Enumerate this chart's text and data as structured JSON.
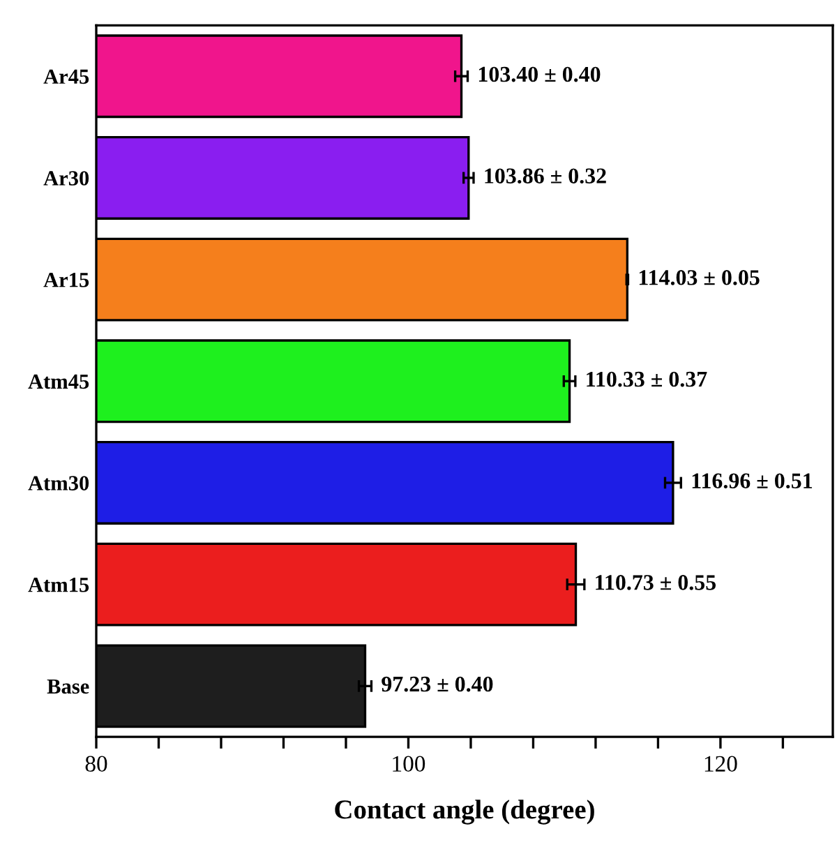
{
  "chart_data": {
    "type": "bar",
    "orientation": "horizontal",
    "xlabel": "Contact angle (degree)",
    "categories": [
      "Ar45",
      "Ar30",
      "Ar15",
      "Atm45",
      "Atm30",
      "Atm15",
      "Base"
    ],
    "values": [
      103.4,
      103.86,
      114.03,
      110.33,
      116.96,
      110.73,
      97.23
    ],
    "errors": [
      0.4,
      0.32,
      0.05,
      0.37,
      0.51,
      0.55,
      0.4
    ],
    "value_labels": [
      "103.40 ± 0.40",
      "103.86 ± 0.32",
      "114.03 ± 0.05",
      "110.33 ± 0.37",
      "116.96 ± 0.51",
      "110.73 ± 0.55",
      "97.23 ± 0.40"
    ],
    "colors": [
      "#f0158c",
      "#8a1ef0",
      "#f57f1c",
      "#1ef01e",
      "#1e1ee6",
      "#eb1e1e",
      "#1e1e1e"
    ],
    "xlim": [
      80,
      127.2
    ],
    "xticks": [
      80,
      {
        "value": 84,
        "label": null
      },
      {
        "value": 88,
        "label": null
      },
      {
        "value": 92,
        "label": null
      },
      {
        "value": 96,
        "label": null
      },
      100,
      {
        "value": 104,
        "label": null
      },
      {
        "value": 108,
        "label": null
      },
      {
        "value": 112,
        "label": null
      },
      {
        "value": 116,
        "label": null
      },
      120,
      {
        "value": 124,
        "label": null
      }
    ]
  }
}
